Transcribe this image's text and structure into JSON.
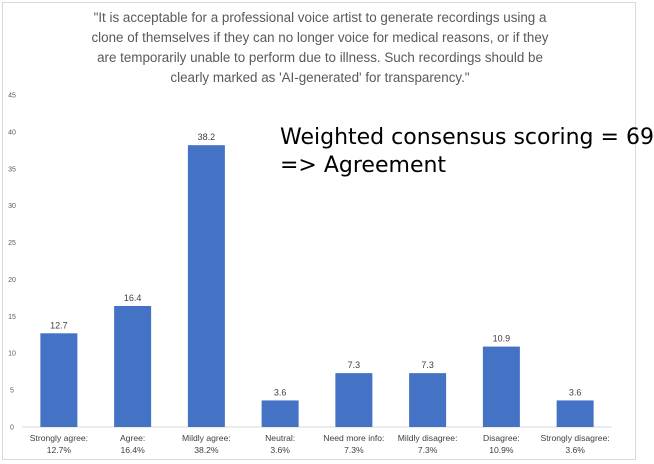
{
  "chart_data": {
    "type": "bar",
    "title": "\"It is acceptable for a professional voice artist to generate recordings using a clone of themselves if they can no longer voice for medical reasons, or if they are temporarily unable to perform due to illness. Such recordings should be clearly marked as 'AI-generated' for transparency.\"",
    "title_lines": [
      "\"It is acceptable for a professional voice artist to generate recordings using a",
      "clone of themselves if they can no longer voice for medical reasons, or if they",
      "are temporarily unable to perform due to illness. Such recordings should be",
      "clearly marked as 'AI-generated' for transparency.\""
    ],
    "annotation_lines": [
      "Weighted consensus scoring = 69",
      "=> Agreement"
    ],
    "categories": [
      [
        "Strongly agree:",
        "12.7%"
      ],
      [
        "Agree:",
        "16.4%"
      ],
      [
        "Mildly agree:",
        "38.2%"
      ],
      [
        "Neutral:",
        "3.6%"
      ],
      [
        "Need more info:",
        "7.3%"
      ],
      [
        "Mildly disagree:",
        "7.3%"
      ],
      [
        "Disagree:",
        "10.9%"
      ],
      [
        "Strongly disagree:",
        "3.6%"
      ]
    ],
    "values": [
      12.7,
      16.4,
      38.2,
      3.6,
      7.3,
      7.3,
      10.9,
      3.6
    ],
    "data_labels": [
      "12.7",
      "16.4",
      "38.2",
      "3.6",
      "7.3",
      "7.3",
      "10.9",
      "3.6"
    ],
    "ylim": [
      0,
      45
    ],
    "yticks": [
      "0",
      "5",
      "10",
      "15",
      "20",
      "25",
      "30",
      "35",
      "40",
      "45"
    ],
    "bar_color": "#4472c4",
    "grid": false,
    "xlabel": "",
    "ylabel": ""
  }
}
